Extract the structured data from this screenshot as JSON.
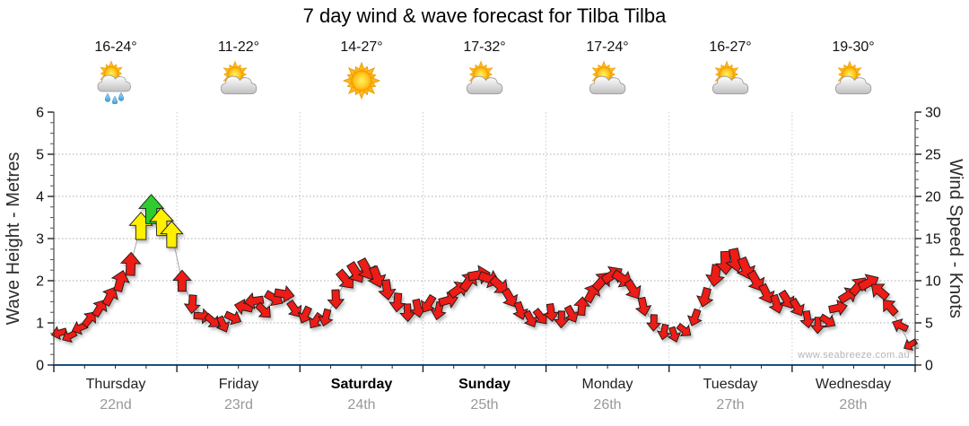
{
  "title": "7 day wind & wave forecast for Tilba Tilba",
  "watermark": "www.seabreeze.com.au",
  "days": [
    {
      "name": "Thursday",
      "date": "22nd",
      "temps": "16-24°",
      "icon": "showers",
      "emphasis": false
    },
    {
      "name": "Friday",
      "date": "23rd",
      "temps": "11-22°",
      "icon": "partly-cloudy",
      "emphasis": false
    },
    {
      "name": "Saturday",
      "date": "24th",
      "temps": "14-27°",
      "icon": "sunny",
      "emphasis": true
    },
    {
      "name": "Sunday",
      "date": "25th",
      "temps": "17-32°",
      "icon": "partly-cloudy",
      "emphasis": true
    },
    {
      "name": "Monday",
      "date": "26th",
      "temps": "17-24°",
      "icon": "partly-cloudy",
      "emphasis": false
    },
    {
      "name": "Tuesday",
      "date": "27th",
      "temps": "16-27°",
      "icon": "partly-cloudy",
      "emphasis": false
    },
    {
      "name": "Wednesday",
      "date": "28th",
      "temps": "19-30°",
      "icon": "partly-cloudy",
      "emphasis": false
    }
  ],
  "chart_data": {
    "type": "line",
    "subtype": "wind-direction-arrows",
    "title": "7 day wind & wave forecast for Tilba Tilba",
    "left_axis": {
      "label": "Wave Height - Metres",
      "min": 0,
      "max": 6,
      "ticks": [
        0,
        1,
        2,
        3,
        4,
        5,
        6
      ]
    },
    "right_axis": {
      "label": "Wind Speed - Knots",
      "min": 0,
      "max": 30,
      "ticks": [
        0,
        5,
        10,
        15,
        20,
        25,
        30
      ]
    },
    "x_axis": {
      "categories": [
        "Thursday",
        "Friday",
        "Saturday",
        "Sunday",
        "Monday",
        "Tuesday",
        "Wednesday"
      ],
      "dates": [
        "22nd",
        "23rd",
        "24th",
        "25th",
        "26th",
        "27th",
        "28th"
      ],
      "points_per_day": 12,
      "minor_divisions_per_day": 4
    },
    "grid": true,
    "legend": "none",
    "wind_color_scale": {
      "red_below_knots": 14,
      "yellow_below_knots": 17.8,
      "red": "#ed1c16",
      "yellow": "#ffef00",
      "green": "#2ecc2e"
    },
    "series": [
      {
        "day": "Thursday",
        "points_knots_dir": [
          [
            3.8,
            255
          ],
          [
            3.4,
            242
          ],
          [
            4.4,
            248
          ],
          [
            5.5,
            38
          ],
          [
            6.8,
            32
          ],
          [
            8.2,
            28
          ],
          [
            10.0,
            15
          ],
          [
            12.0,
            2
          ],
          [
            16.5,
            0
          ],
          [
            18.5,
            0
          ],
          [
            17.0,
            358
          ],
          [
            15.5,
            0
          ]
        ]
      },
      {
        "day": "Friday",
        "points_knots_dir": [
          [
            10.0,
            0
          ],
          [
            7.2,
            185
          ],
          [
            5.8,
            95
          ],
          [
            5.2,
            130
          ],
          [
            4.8,
            155
          ],
          [
            5.6,
            115
          ],
          [
            6.9,
            282
          ],
          [
            7.6,
            262
          ],
          [
            6.4,
            135
          ],
          [
            7.9,
            120
          ],
          [
            8.4,
            100
          ],
          [
            6.6,
            145
          ]
        ]
      },
      {
        "day": "Saturday",
        "points_knots_dir": [
          [
            5.9,
            205
          ],
          [
            5.2,
            215
          ],
          [
            5.6,
            195
          ],
          [
            7.8,
            178
          ],
          [
            10.1,
            140
          ],
          [
            10.9,
            148
          ],
          [
            11.3,
            152
          ],
          [
            10.4,
            160
          ],
          [
            8.9,
            172
          ],
          [
            7.4,
            185
          ],
          [
            6.2,
            178
          ],
          [
            6.7,
            168
          ]
        ]
      },
      {
        "day": "Sunday",
        "points_knots_dir": [
          [
            7.2,
            212
          ],
          [
            6.4,
            192
          ],
          [
            7.7,
            75
          ],
          [
            9.0,
            55
          ],
          [
            10.0,
            35
          ],
          [
            10.7,
            80
          ],
          [
            10.2,
            110
          ],
          [
            9.4,
            132
          ],
          [
            7.9,
            150
          ],
          [
            6.4,
            162
          ],
          [
            5.4,
            152
          ],
          [
            5.7,
            142
          ]
        ]
      },
      {
        "day": "Monday",
        "points_knots_dir": [
          [
            6.2,
            172
          ],
          [
            5.4,
            182
          ],
          [
            6.0,
            152
          ],
          [
            7.0,
            4
          ],
          [
            8.6,
            28
          ],
          [
            10.0,
            42
          ],
          [
            10.7,
            58
          ],
          [
            10.2,
            122
          ],
          [
            8.9,
            148
          ],
          [
            6.9,
            168
          ],
          [
            5.0,
            182
          ],
          [
            3.9,
            192
          ]
        ]
      },
      {
        "day": "Tuesday",
        "points_knots_dir": [
          [
            3.6,
            162
          ],
          [
            4.1,
            128
          ],
          [
            5.6,
            200
          ],
          [
            8.0,
            195
          ],
          [
            10.6,
            188
          ],
          [
            12.1,
            178
          ],
          [
            12.4,
            168
          ],
          [
            11.4,
            158
          ],
          [
            9.9,
            150
          ],
          [
            8.4,
            155
          ],
          [
            7.2,
            162
          ],
          [
            7.7,
            148
          ]
        ]
      },
      {
        "day": "Wednesday",
        "points_knots_dir": [
          [
            6.8,
            150
          ],
          [
            5.4,
            172
          ],
          [
            4.7,
            182
          ],
          [
            5.2,
            122
          ],
          [
            6.8,
            78
          ],
          [
            8.3,
            58
          ],
          [
            9.4,
            40
          ],
          [
            9.8,
            62
          ],
          [
            8.8,
            310
          ],
          [
            6.9,
            318
          ],
          [
            4.7,
            295
          ],
          [
            2.4,
            240
          ]
        ]
      }
    ],
    "connector_line_color": "#a6a6a6"
  },
  "colors": {
    "grid_horizontal": "#aaaaaa",
    "grid_day_boundary": "#cccccc",
    "axis_line": "#222222",
    "axis_bottom": "#1c4f7c",
    "tick_label": "#111111",
    "date_text": "#999999",
    "watermark_text": "#b4b4b4"
  }
}
